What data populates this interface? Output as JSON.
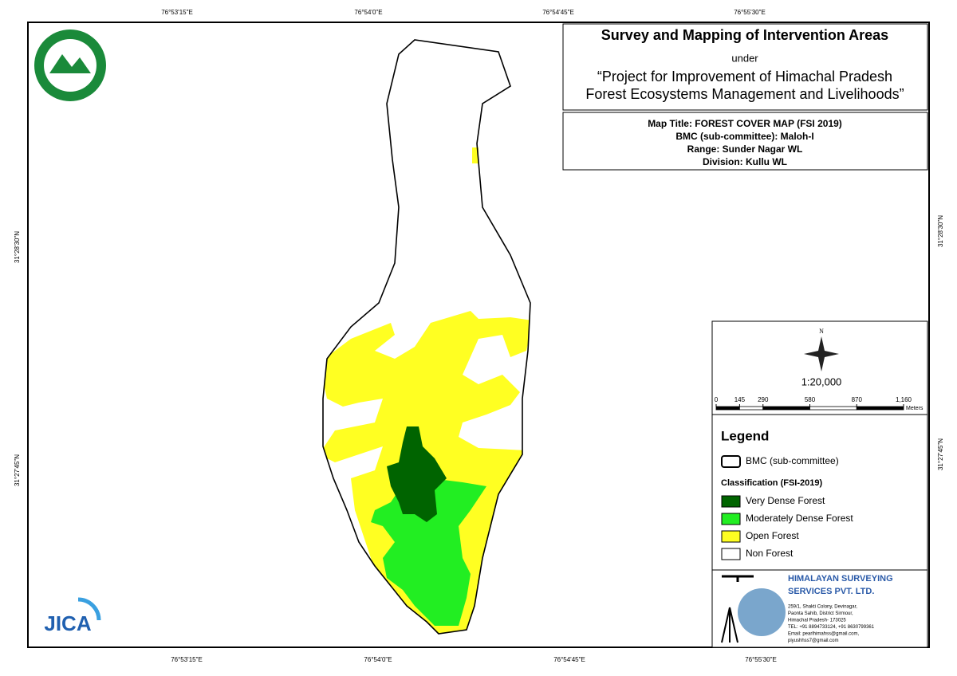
{
  "grid_labels": {
    "top": [
      "76°53'15\"E",
      "76°54'0\"E",
      "76°54'45\"E",
      "76°55'30\"E"
    ],
    "bottom": [
      "76°53'15\"E",
      "76°54'0\"E",
      "76°54'45\"E",
      "76°55'30\"E"
    ],
    "left": [
      "31°28'30\"N",
      "31°27'45\"N"
    ],
    "right": [
      "31°28'30\"N",
      "31°27'45\"N"
    ]
  },
  "header": {
    "title": "Survey and Mapping of Intervention Areas",
    "under": "under",
    "project_1": "“Project for Improvement of Himachal Pradesh",
    "project_2": "Forest Ecosystems Management and Livelihoods”"
  },
  "info": [
    "Map Title: FOREST COVER MAP (FSI 2019)",
    "BMC (sub-committee): Maloh-I",
    "Range: Sunder Nagar WL",
    "Division: Kullu WL"
  ],
  "north": "N",
  "scale": "1:20,000",
  "scale_bar": {
    "ticks": [
      0,
      145,
      290,
      580,
      870,
      {
        "value": 1160,
        "label": "1,160"
      }
    ],
    "unit": "Meters"
  },
  "legend": {
    "title": "Legend",
    "boundary": "BMC (sub-committee)",
    "classification": "Classification (FSI-2019)",
    "items": [
      {
        "label": "Very Dense Forest",
        "color": "#006400"
      },
      {
        "label": "Moderately Dense Forest",
        "color": "#22ee22"
      },
      {
        "label": "Open Forest",
        "color": "#ffff22"
      },
      {
        "label": "Non Forest",
        "color": "#ffffff"
      }
    ]
  },
  "company": {
    "name_1": "HIMALAYAN SURVEYING",
    "name_2": "SERVICES PVT. LTD.",
    "address": [
      "259/1, Shakti Colony, Devinagar,",
      "Paonta Sahib, District Sirmour,",
      "Himachal Pradesh- 173025",
      "TEL: +91 8894733124, +91 8630799361",
      "Email: pearlhimahss@gmail.com,",
      "piyushhss7@gmail.com"
    ]
  },
  "jica": "JICA"
}
